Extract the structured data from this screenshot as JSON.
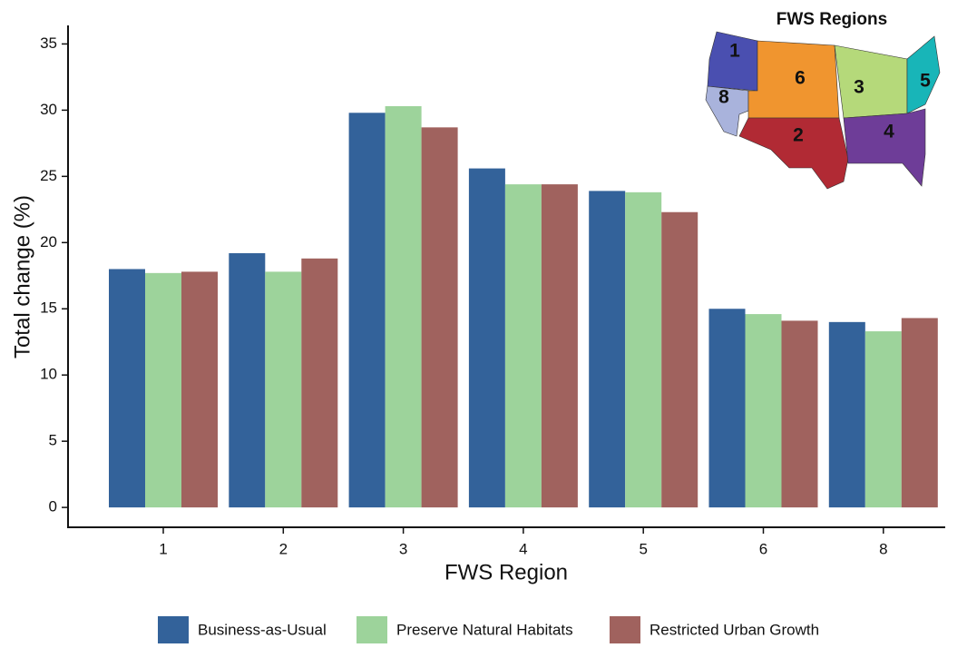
{
  "chart_data": {
    "type": "bar",
    "y_label": "Total change (%)",
    "x_label": "FWS Region",
    "categories": [
      "1",
      "2",
      "3",
      "4",
      "5",
      "6",
      "8"
    ],
    "series": [
      {
        "name": "Business-as-Usual",
        "color": "#33629a",
        "values": [
          18.0,
          19.2,
          29.8,
          25.6,
          23.9,
          15.0,
          14.0
        ]
      },
      {
        "name": "Preserve Natural Habitats",
        "color": "#9dd39b",
        "values": [
          17.7,
          17.8,
          30.3,
          24.4,
          23.8,
          14.6,
          13.3
        ]
      },
      {
        "name": "Restricted Urban Growth",
        "color": "#a0625e",
        "values": [
          17.8,
          18.8,
          28.7,
          24.4,
          22.3,
          14.1,
          14.3
        ]
      }
    ],
    "ylim": [
      -1.5,
      36.4
    ],
    "yticks": [
      0,
      5,
      10,
      15,
      20,
      25,
      30,
      35
    ],
    "grid": false,
    "inset": {
      "title": "FWS Regions",
      "labels": [
        "1",
        "6",
        "3",
        "5",
        "8",
        "2",
        "4"
      ]
    }
  }
}
